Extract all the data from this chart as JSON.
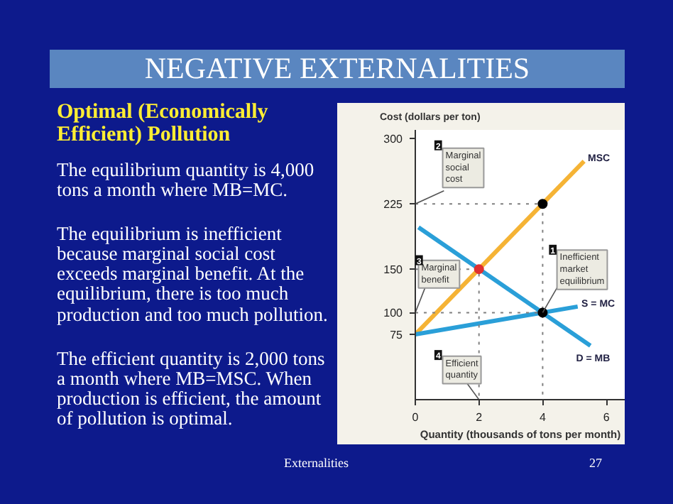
{
  "chart_data": {
    "type": "line",
    "title": "NEGATIVE EXTERNALITIES",
    "subtitle": "Optimal (Economically\nEfficient) Pollution",
    "xlabel": "Quantity (thousands of tons per month)",
    "ylabel": "Cost (dollars per ton)",
    "xlim": [
      0,
      6.6
    ],
    "ylim": [
      0,
      310
    ],
    "xticks": [
      0,
      2,
      4,
      6
    ],
    "yticks": [
      75,
      100,
      150,
      225,
      300
    ],
    "grid": false,
    "series": [
      {
        "name": "MSC",
        "color": "#f5b335",
        "x": [
          0,
          5.3
        ],
        "values": [
          75,
          274
        ]
      },
      {
        "name": "D = MB",
        "color": "#2a9fd8",
        "x": [
          0.1,
          5.5
        ],
        "values": [
          198,
          62
        ]
      },
      {
        "name": "S = MC",
        "color": "#2a9fd8",
        "x": [
          0,
          5.1
        ],
        "values": [
          75,
          107
        ]
      },
      {
        "color": "#808080",
        "line_style": "dotted",
        "x": [
          0,
          4,
          4
        ],
        "values": [
          225,
          225,
          0
        ]
      },
      {
        "color": "#808080",
        "line_style": "dotted",
        "x": [
          0,
          2,
          2
        ],
        "values": [
          150,
          150,
          0
        ]
      },
      {
        "color": "#808080",
        "line_style": "dotted",
        "x": [
          0,
          4
        ],
        "values": [
          100,
          100
        ]
      },
      {
        "type": "scatter",
        "marker": "circle",
        "x": [
          4,
          2,
          4
        ],
        "values": [
          225,
          150,
          100
        ],
        "colors": [
          "#000000",
          "#e03030",
          "#000000"
        ]
      }
    ],
    "annotations": [
      "The equilibrium quantity is 4,000\ntons a month where MB=MC.",
      "The equilibrium is inefficient\nbecause marginal social cost\nexceeds marginal benefit. At the\nequilibrium, there is too much\nproduction and too much pollution.",
      "The efficient quantity is 2,000 tons\na month where MB=MSC. When\nproduction is efficient, the amount\nof pollution is optimal.",
      "Externalities",
      "27",
      {
        "text": "Marginal\nsocial\ncost",
        "x": 0,
        "y": 225
      },
      {
        "text": "Inefficient\nmarket\nequilibrium",
        "x": 4,
        "y": 100
      },
      {
        "text": "Marginal\nbenefit",
        "x": 0,
        "y": 100
      },
      {
        "text": "Efficient\nquantity",
        "x": 2,
        "y": 0
      },
      "2",
      "1",
      "3",
      "4"
    ]
  }
}
